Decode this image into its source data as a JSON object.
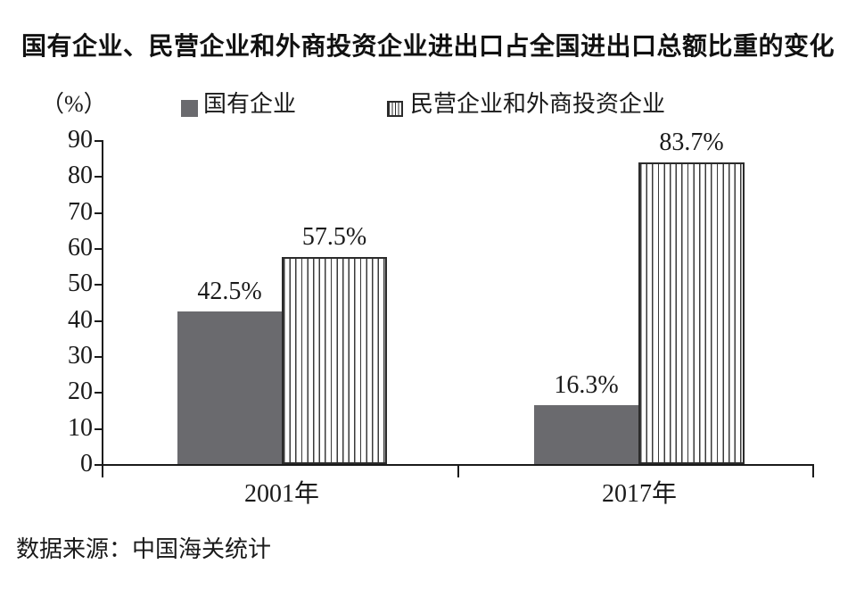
{
  "chart_data": {
    "type": "bar",
    "title": "国有企业、民营企业和外商投资企业进出口占全国进出口总额比重的变化",
    "unit_label": "（%）",
    "categories": [
      "2001年",
      "2017年"
    ],
    "series": [
      {
        "name": "国有企业",
        "style": "solid-gray",
        "values": [
          42.5,
          16.3
        ],
        "labels": [
          "42.5%",
          "16.3%"
        ]
      },
      {
        "name": "民营企业和外商投资企业",
        "style": "vertical-stripes",
        "values": [
          57.5,
          83.7
        ],
        "labels": [
          "57.5%",
          "83.7%"
        ]
      }
    ],
    "ylim": [
      0,
      90
    ],
    "yticks": [
      "90",
      "80",
      "70",
      "60",
      "50",
      "40",
      "30",
      "20",
      "10",
      "0"
    ],
    "legend_position": "top",
    "grid": false,
    "source": "数据来源：中国海关统计",
    "colors": {
      "bar_gray": "#6a6a6e",
      "stripe": "#2b2b2b",
      "axis": "#1a1a1a",
      "text": "#111111"
    }
  }
}
